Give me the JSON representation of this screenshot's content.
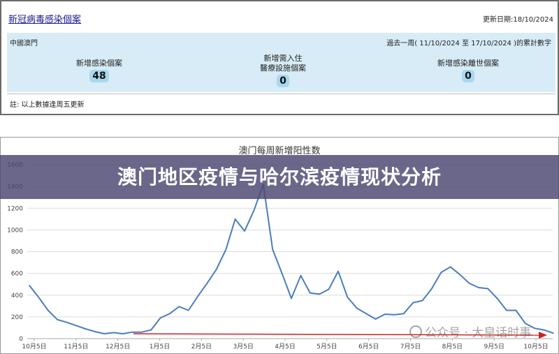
{
  "top_panel": {
    "title": "新冠病毒感染個案",
    "updated": "更新日期:18/10/2024",
    "region": "中國澳門",
    "period": "過去一周( 11/10/2024 至 17/10/2024 )的累計數字",
    "stats": [
      {
        "label": "新增感染個案",
        "value": "48"
      },
      {
        "label_line1": "新增需入住",
        "label_line2": "醫療設施個案",
        "value": "0"
      },
      {
        "label": "新增感染離世個案",
        "value": "0"
      }
    ],
    "note": "註: 以上數據逢周五更新"
  },
  "banner": {
    "text": "澳门地区疫情与哈尔滨疫情现状分析"
  },
  "watermark": {
    "text": "公众号 · 大皇话时事"
  },
  "chart_data": {
    "type": "line",
    "title": "澳门每周新增阳性数",
    "xlabel": "",
    "ylabel": "",
    "ylim": [
      0,
      1600
    ],
    "yticks": [
      0,
      200,
      400,
      600,
      800,
      1000,
      1200,
      1400,
      1600
    ],
    "grid": true,
    "line_color": "#4a7ebb",
    "x_tick_labels": [
      "10月5日",
      "11月5日",
      "12月5日",
      "1月5日",
      "2月5日",
      "3月5日",
      "4月5日",
      "5月5日",
      "6月5日",
      "7月5日",
      "8月5日",
      "9月5日",
      "10月5日"
    ],
    "series": [
      {
        "values": [
          490,
          380,
          260,
          175,
          150,
          120,
          90,
          65,
          45,
          55,
          45,
          60,
          60,
          80,
          190,
          230,
          295,
          260,
          390,
          510,
          640,
          820,
          1100,
          990,
          1180,
          1420,
          820,
          600,
          370,
          580,
          420,
          410,
          455,
          620,
          380,
          280,
          230,
          180,
          225,
          220,
          230,
          330,
          350,
          460,
          610,
          660,
          590,
          510,
          470,
          460,
          370,
          260,
          260,
          140,
          95,
          80,
          50
        ]
      }
    ],
    "trend_arrow_color": "#d42020"
  }
}
